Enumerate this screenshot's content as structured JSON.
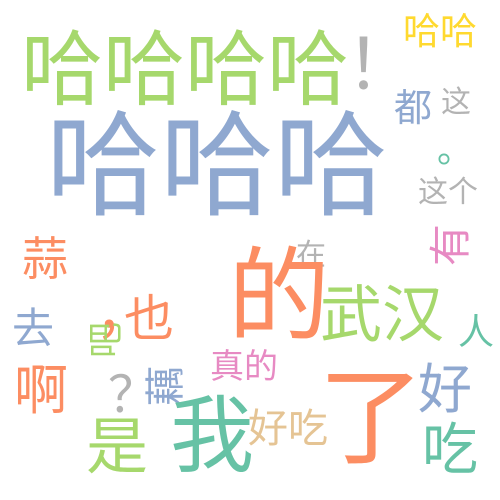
{
  "words": [
    {
      "key": "hahaha_big",
      "text": "哈哈哈",
      "color": "#8fa8d0"
    },
    {
      "key": "hahahaha",
      "text": "哈哈哈哈",
      "color": "#a6d86c"
    },
    {
      "key": "exclaim",
      "text": "！",
      "color": "#b3b3b3"
    },
    {
      "key": "haha_small",
      "text": "哈哈",
      "color": "#ffd92f"
    },
    {
      "key": "dou",
      "text": "都",
      "color": "#8fa8d0"
    },
    {
      "key": "zhe",
      "text": "这",
      "color": "#b3b3b3"
    },
    {
      "key": "period",
      "text": "。",
      "color": "#66c2a5"
    },
    {
      "key": "zhege",
      "text": "这个",
      "color": "#b3b3b3"
    },
    {
      "key": "you",
      "text": "有",
      "color": "#e78ac3"
    },
    {
      "key": "zai",
      "text": "在",
      "color": "#b3b3b3"
    },
    {
      "key": "suan",
      "text": "蒜",
      "color": "#fc8d62"
    },
    {
      "key": "de_big",
      "text": "的",
      "color": "#fc8d62"
    },
    {
      "key": "wuhan",
      "text": "武汉",
      "color": "#a6d86c"
    },
    {
      "key": "comma",
      "text": "，",
      "color": "#fc8d62"
    },
    {
      "key": "ye",
      "text": "也",
      "color": "#fc8d62"
    },
    {
      "key": "qu",
      "text": "去",
      "color": "#8fa8d0"
    },
    {
      "key": "ba",
      "text": "吧",
      "color": "#a6d86c"
    },
    {
      "key": "ren",
      "text": "人",
      "color": "#66c2a5"
    },
    {
      "key": "zhende",
      "text": "真的",
      "color": "#e78ac3"
    },
    {
      "key": "a",
      "text": "啊",
      "color": "#fc8d62"
    },
    {
      "key": "question",
      "text": "？",
      "color": "#b3b3b3"
    },
    {
      "key": "oulai",
      "text": "藕",
      "color": "#8fa8d0"
    },
    {
      "key": "hao",
      "text": "好",
      "color": "#8fa8d0"
    },
    {
      "key": "le",
      "text": "了",
      "color": "#fc8d62"
    },
    {
      "key": "wo",
      "text": "我",
      "color": "#66c2a5"
    },
    {
      "key": "haochi",
      "text": "好吃",
      "color": "#e5c494"
    },
    {
      "key": "shi",
      "text": "是",
      "color": "#a6d86c"
    },
    {
      "key": "chi",
      "text": "吃",
      "color": "#66c2a5"
    }
  ]
}
